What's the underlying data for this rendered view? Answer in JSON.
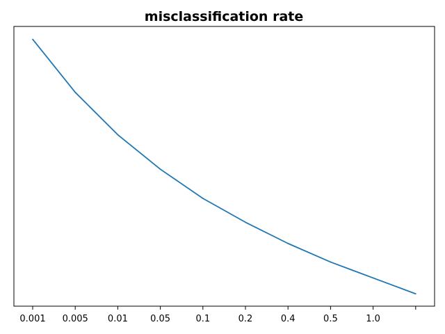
{
  "chart_data": {
    "type": "line",
    "title": "misclassification rate",
    "xlabel": "",
    "ylabel": "",
    "x_tick_labels": [
      "0.001",
      "0.005",
      "0.01",
      "0.05",
      "0.1",
      "0.2",
      "0.4",
      "0.5",
      "1.0",
      ""
    ],
    "y_tick_labels": [],
    "grid": false,
    "legend": "none",
    "series": [
      {
        "color": "#1f77b4",
        "values": [
          1.0,
          0.8,
          0.64,
          0.51,
          0.4,
          0.31,
          0.23,
          0.16,
          0.1,
          0.04
        ]
      }
    ],
    "ylim": [
      -0.0065,
      1.0485
    ]
  }
}
